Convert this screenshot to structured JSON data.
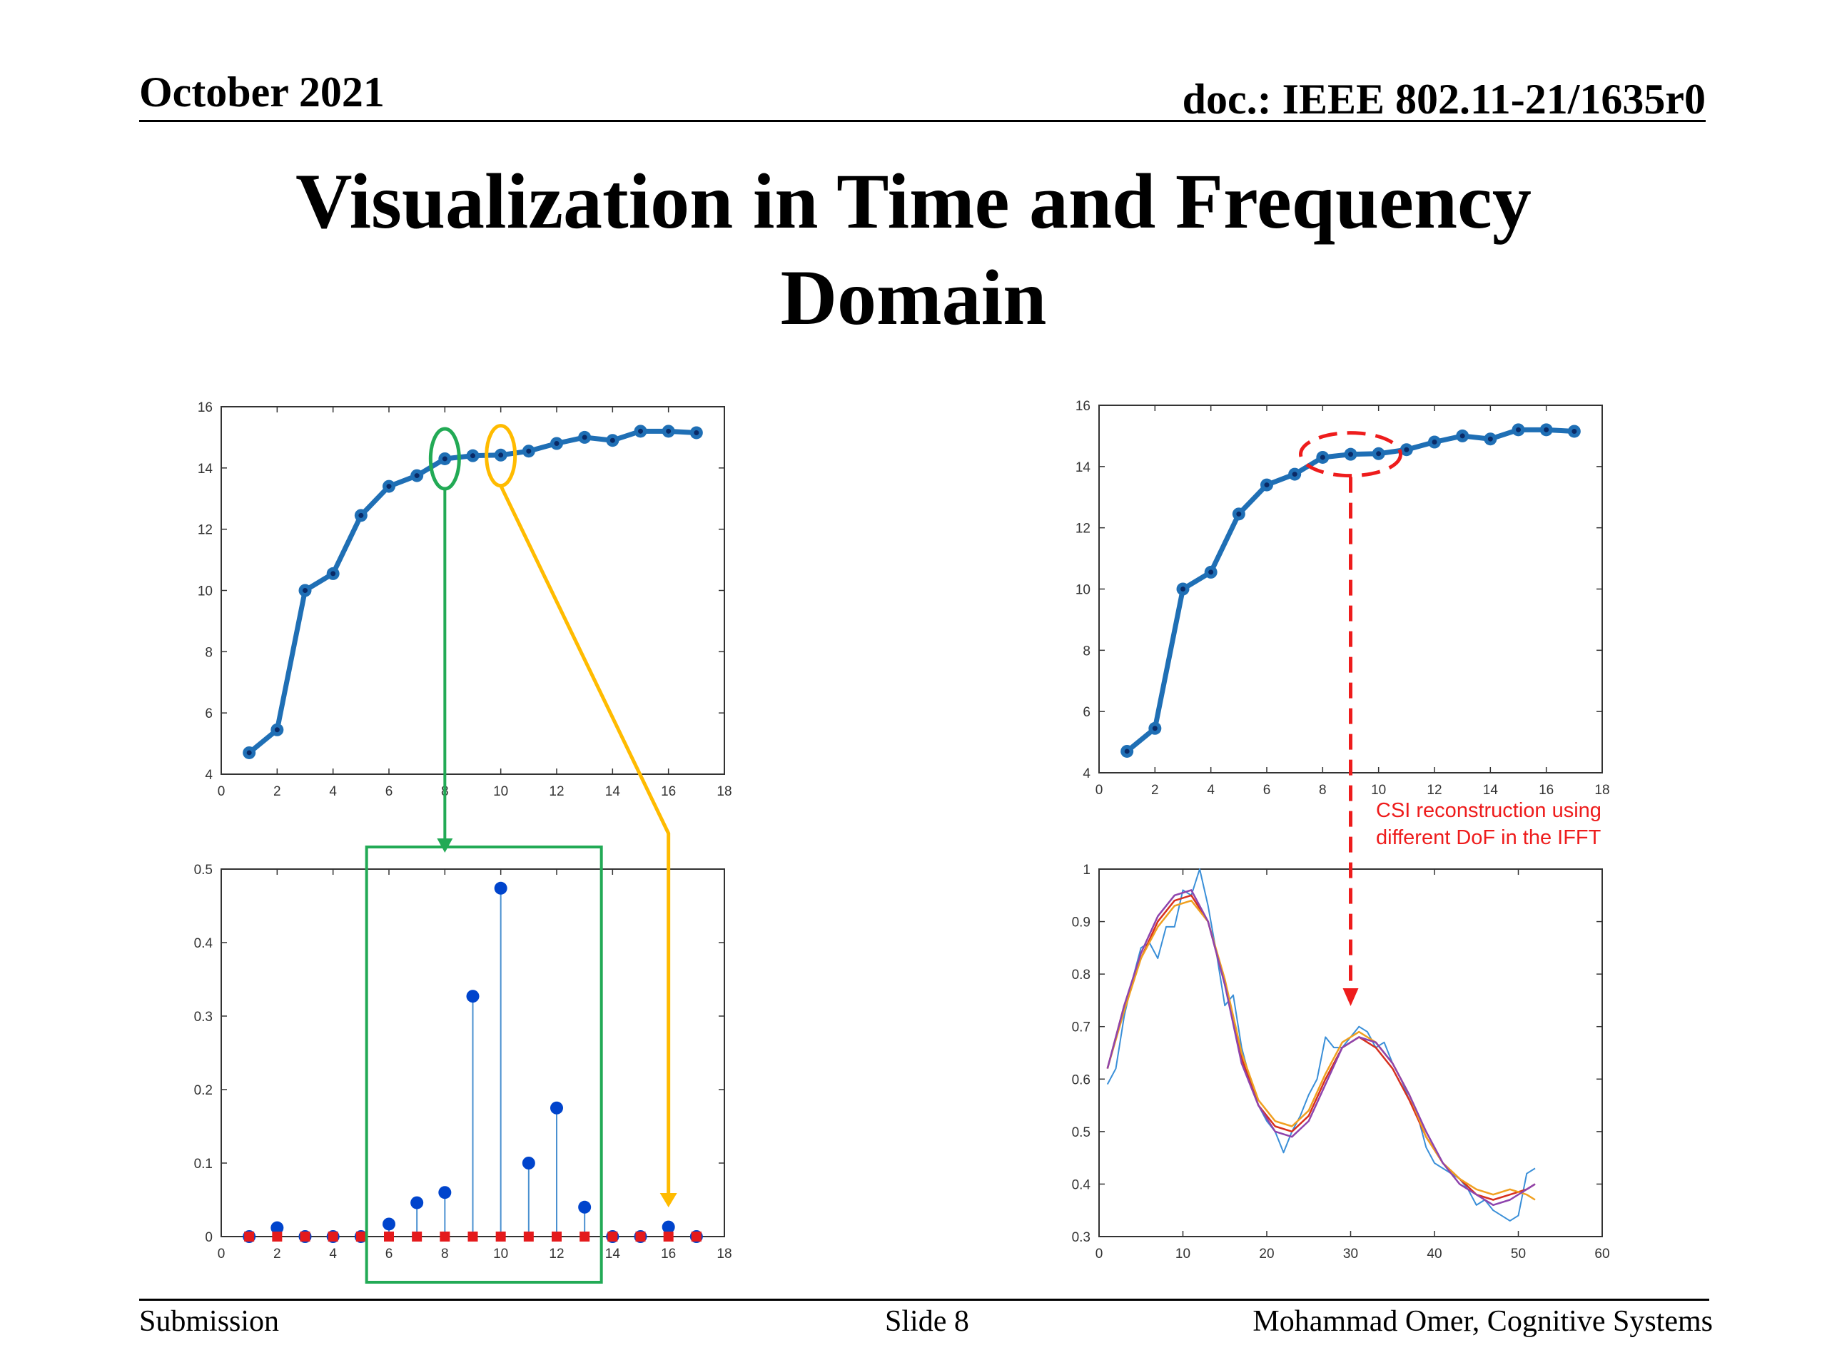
{
  "header": {
    "date": "October 2021",
    "doc": "doc.: IEEE 802.11-21/1635r0"
  },
  "title": {
    "line1": "Visualization in Time and Frequency",
    "line2": "Domain"
  },
  "annotation": {
    "line1": "CSI reconstruction using",
    "line2": "different DoF in the IFFT",
    "color": "#ee1c1c"
  },
  "footer": {
    "left": "Submission",
    "center": "Slide 8",
    "right": "Mohammad Omer, Cognitive Systems"
  },
  "colors": {
    "line_blue": "#1f6fb5",
    "marker_blue": "#0044cc",
    "stem_blue": "#4a90d0",
    "red_marker": "#e41a1c",
    "green": "#22aa55",
    "yellow": "#ffbb00",
    "red_dash": "#ee1c1c",
    "orange": "#f0a020",
    "purple": "#8e44ad"
  },
  "chart_data": [
    {
      "id": "top-left",
      "type": "line",
      "x": [
        1,
        2,
        3,
        4,
        5,
        6,
        7,
        8,
        9,
        10,
        11,
        12,
        13,
        14,
        15,
        16,
        17
      ],
      "series": [
        {
          "values": [
            4.7,
            5.45,
            10.0,
            10.55,
            12.45,
            13.4,
            13.75,
            14.3,
            14.4,
            14.42,
            14.55,
            14.8,
            15.0,
            14.9,
            15.2,
            15.2,
            15.15
          ]
        }
      ],
      "xlim": [
        0,
        18
      ],
      "ylim": [
        4,
        16
      ],
      "xticks": [
        0,
        2,
        4,
        6,
        8,
        10,
        12,
        14,
        16,
        18
      ],
      "yticks": [
        4,
        6,
        8,
        10,
        12,
        14,
        16
      ],
      "annotations": [
        {
          "shape": "ellipse",
          "color": "green",
          "x": 8,
          "y": 14.3
        },
        {
          "shape": "ellipse",
          "color": "yellow",
          "x": 10,
          "y": 14.4
        }
      ]
    },
    {
      "id": "bottom-left",
      "type": "stem",
      "x": [
        1,
        2,
        3,
        4,
        5,
        6,
        7,
        8,
        9,
        10,
        11,
        12,
        13,
        14,
        15,
        16,
        17
      ],
      "series": [
        {
          "marker": "circle",
          "values": [
            0.0,
            0.012,
            0.0,
            0.0,
            0.0,
            0.017,
            0.046,
            0.06,
            0.327,
            0.474,
            0.1,
            0.175,
            0.04,
            0.0,
            0.0,
            0.013,
            0.0
          ]
        },
        {
          "marker": "square",
          "x": [
            1,
            2,
            3,
            4,
            5,
            6,
            7,
            8,
            9,
            10,
            11,
            12,
            13,
            14,
            15,
            16,
            17
          ],
          "values": [
            0,
            0,
            0,
            0,
            0,
            0,
            0,
            0,
            0,
            0,
            0,
            0,
            0,
            0,
            0,
            0,
            0
          ]
        }
      ],
      "xlim": [
        0,
        18
      ],
      "ylim": [
        0,
        0.5
      ],
      "xticks": [
        0,
        2,
        4,
        6,
        8,
        10,
        12,
        14,
        16,
        18
      ],
      "yticks": [
        0,
        0.1,
        0.2,
        0.3,
        0.4,
        0.5
      ],
      "annotations": [
        {
          "shape": "rectangle",
          "color": "green",
          "x_range": [
            5.2,
            13.6
          ]
        }
      ]
    },
    {
      "id": "top-right",
      "type": "line",
      "x": [
        1,
        2,
        3,
        4,
        5,
        6,
        7,
        8,
        9,
        10,
        11,
        12,
        13,
        14,
        15,
        16,
        17
      ],
      "series": [
        {
          "values": [
            4.7,
            5.45,
            10.0,
            10.55,
            12.45,
            13.4,
            13.75,
            14.3,
            14.4,
            14.42,
            14.55,
            14.8,
            15.0,
            14.9,
            15.2,
            15.2,
            15.15
          ]
        }
      ],
      "xlim": [
        0,
        18
      ],
      "ylim": [
        4,
        16
      ],
      "xticks": [
        0,
        2,
        4,
        6,
        8,
        10,
        12,
        14,
        16,
        18
      ],
      "yticks": [
        4,
        6,
        8,
        10,
        12,
        14,
        16
      ],
      "annotations": [
        {
          "shape": "dashed-ellipse",
          "color": "red",
          "x": 9,
          "y": 14.4
        }
      ]
    },
    {
      "id": "bottom-right",
      "type": "line",
      "xlim": [
        0,
        60
      ],
      "ylim": [
        0.3,
        1.0
      ],
      "xticks": [
        0,
        10,
        20,
        30,
        40,
        50,
        60
      ],
      "yticks": [
        0.3,
        0.4,
        0.5,
        0.6,
        0.7,
        0.8,
        0.9,
        1
      ],
      "series": [
        {
          "color": "blue",
          "x": [
            1,
            2,
            3,
            4,
            5,
            6,
            7,
            8,
            9,
            10,
            11,
            12,
            13,
            14,
            15,
            16,
            17,
            18,
            19,
            20,
            21,
            22,
            23,
            24,
            25,
            26,
            27,
            28,
            29,
            30,
            31,
            32,
            33,
            34,
            35,
            36,
            37,
            38,
            39,
            40,
            41,
            42,
            43,
            44,
            45,
            46,
            47,
            48,
            49,
            50,
            51,
            52
          ],
          "values": [
            0.59,
            0.62,
            0.72,
            0.79,
            0.85,
            0.86,
            0.83,
            0.89,
            0.89,
            0.96,
            0.95,
            1.0,
            0.93,
            0.84,
            0.74,
            0.76,
            0.66,
            0.6,
            0.55,
            0.52,
            0.5,
            0.46,
            0.5,
            0.53,
            0.57,
            0.6,
            0.68,
            0.66,
            0.66,
            0.68,
            0.7,
            0.69,
            0.66,
            0.67,
            0.63,
            0.6,
            0.56,
            0.53,
            0.47,
            0.44,
            0.43,
            0.42,
            0.41,
            0.39,
            0.36,
            0.37,
            0.35,
            0.34,
            0.33,
            0.34,
            0.42,
            0.43
          ]
        },
        {
          "color": "red",
          "x": [
            1,
            3,
            5,
            7,
            9,
            11,
            13,
            15,
            17,
            19,
            21,
            23,
            25,
            27,
            29,
            31,
            33,
            35,
            37,
            39,
            41,
            43,
            45,
            47,
            49,
            51,
            52
          ],
          "values": [
            0.62,
            0.74,
            0.83,
            0.9,
            0.94,
            0.95,
            0.9,
            0.78,
            0.64,
            0.55,
            0.51,
            0.5,
            0.53,
            0.6,
            0.66,
            0.68,
            0.66,
            0.62,
            0.56,
            0.49,
            0.44,
            0.41,
            0.38,
            0.37,
            0.38,
            0.39,
            0.4
          ]
        },
        {
          "color": "orange",
          "x": [
            1,
            3,
            5,
            7,
            9,
            11,
            13,
            15,
            17,
            19,
            21,
            23,
            25,
            27,
            29,
            31,
            33,
            35,
            37,
            39,
            41,
            43,
            45,
            47,
            49,
            51,
            52
          ],
          "values": [
            0.62,
            0.73,
            0.83,
            0.89,
            0.93,
            0.94,
            0.9,
            0.79,
            0.65,
            0.56,
            0.52,
            0.51,
            0.54,
            0.61,
            0.67,
            0.69,
            0.67,
            0.63,
            0.57,
            0.49,
            0.44,
            0.41,
            0.39,
            0.38,
            0.39,
            0.38,
            0.37
          ]
        },
        {
          "color": "purple",
          "x": [
            1,
            3,
            5,
            7,
            9,
            11,
            13,
            15,
            17,
            19,
            21,
            23,
            25,
            27,
            29,
            31,
            33,
            35,
            37,
            39,
            41,
            43,
            45,
            47,
            49,
            51,
            52
          ],
          "values": [
            0.62,
            0.74,
            0.84,
            0.91,
            0.95,
            0.96,
            0.9,
            0.78,
            0.63,
            0.55,
            0.5,
            0.49,
            0.52,
            0.59,
            0.66,
            0.68,
            0.67,
            0.63,
            0.57,
            0.5,
            0.44,
            0.4,
            0.38,
            0.36,
            0.37,
            0.39,
            0.4
          ]
        }
      ]
    }
  ]
}
